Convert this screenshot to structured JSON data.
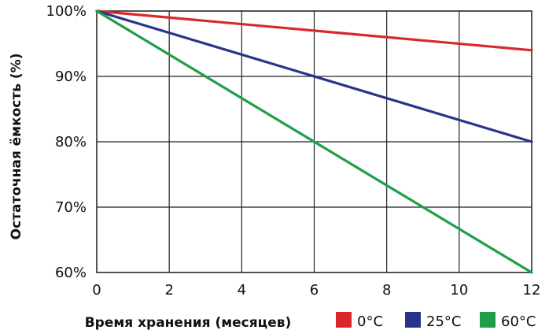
{
  "chart_data": {
    "type": "line",
    "x": [
      0,
      12
    ],
    "xticks": [
      "0",
      "2",
      "4",
      "6",
      "8",
      "10",
      "12"
    ],
    "yticks": [
      "60%",
      "70%",
      "80%",
      "90%",
      "100%"
    ],
    "xlim": [
      0,
      12
    ],
    "ylim": [
      60,
      100
    ],
    "xlabel": "Время хранения (месяцев)",
    "ylabel": "Остаточная ёмкость (%)",
    "grid": true,
    "legend_position": "bottom-right",
    "series": [
      {
        "name": "0°C",
        "color": "#d8282c",
        "values": [
          100,
          94
        ]
      },
      {
        "name": "25°C",
        "color": "#28348c",
        "values": [
          100,
          80
        ]
      },
      {
        "name": "60°C",
        "color": "#1f9e4a",
        "values": [
          100,
          60
        ]
      }
    ]
  }
}
